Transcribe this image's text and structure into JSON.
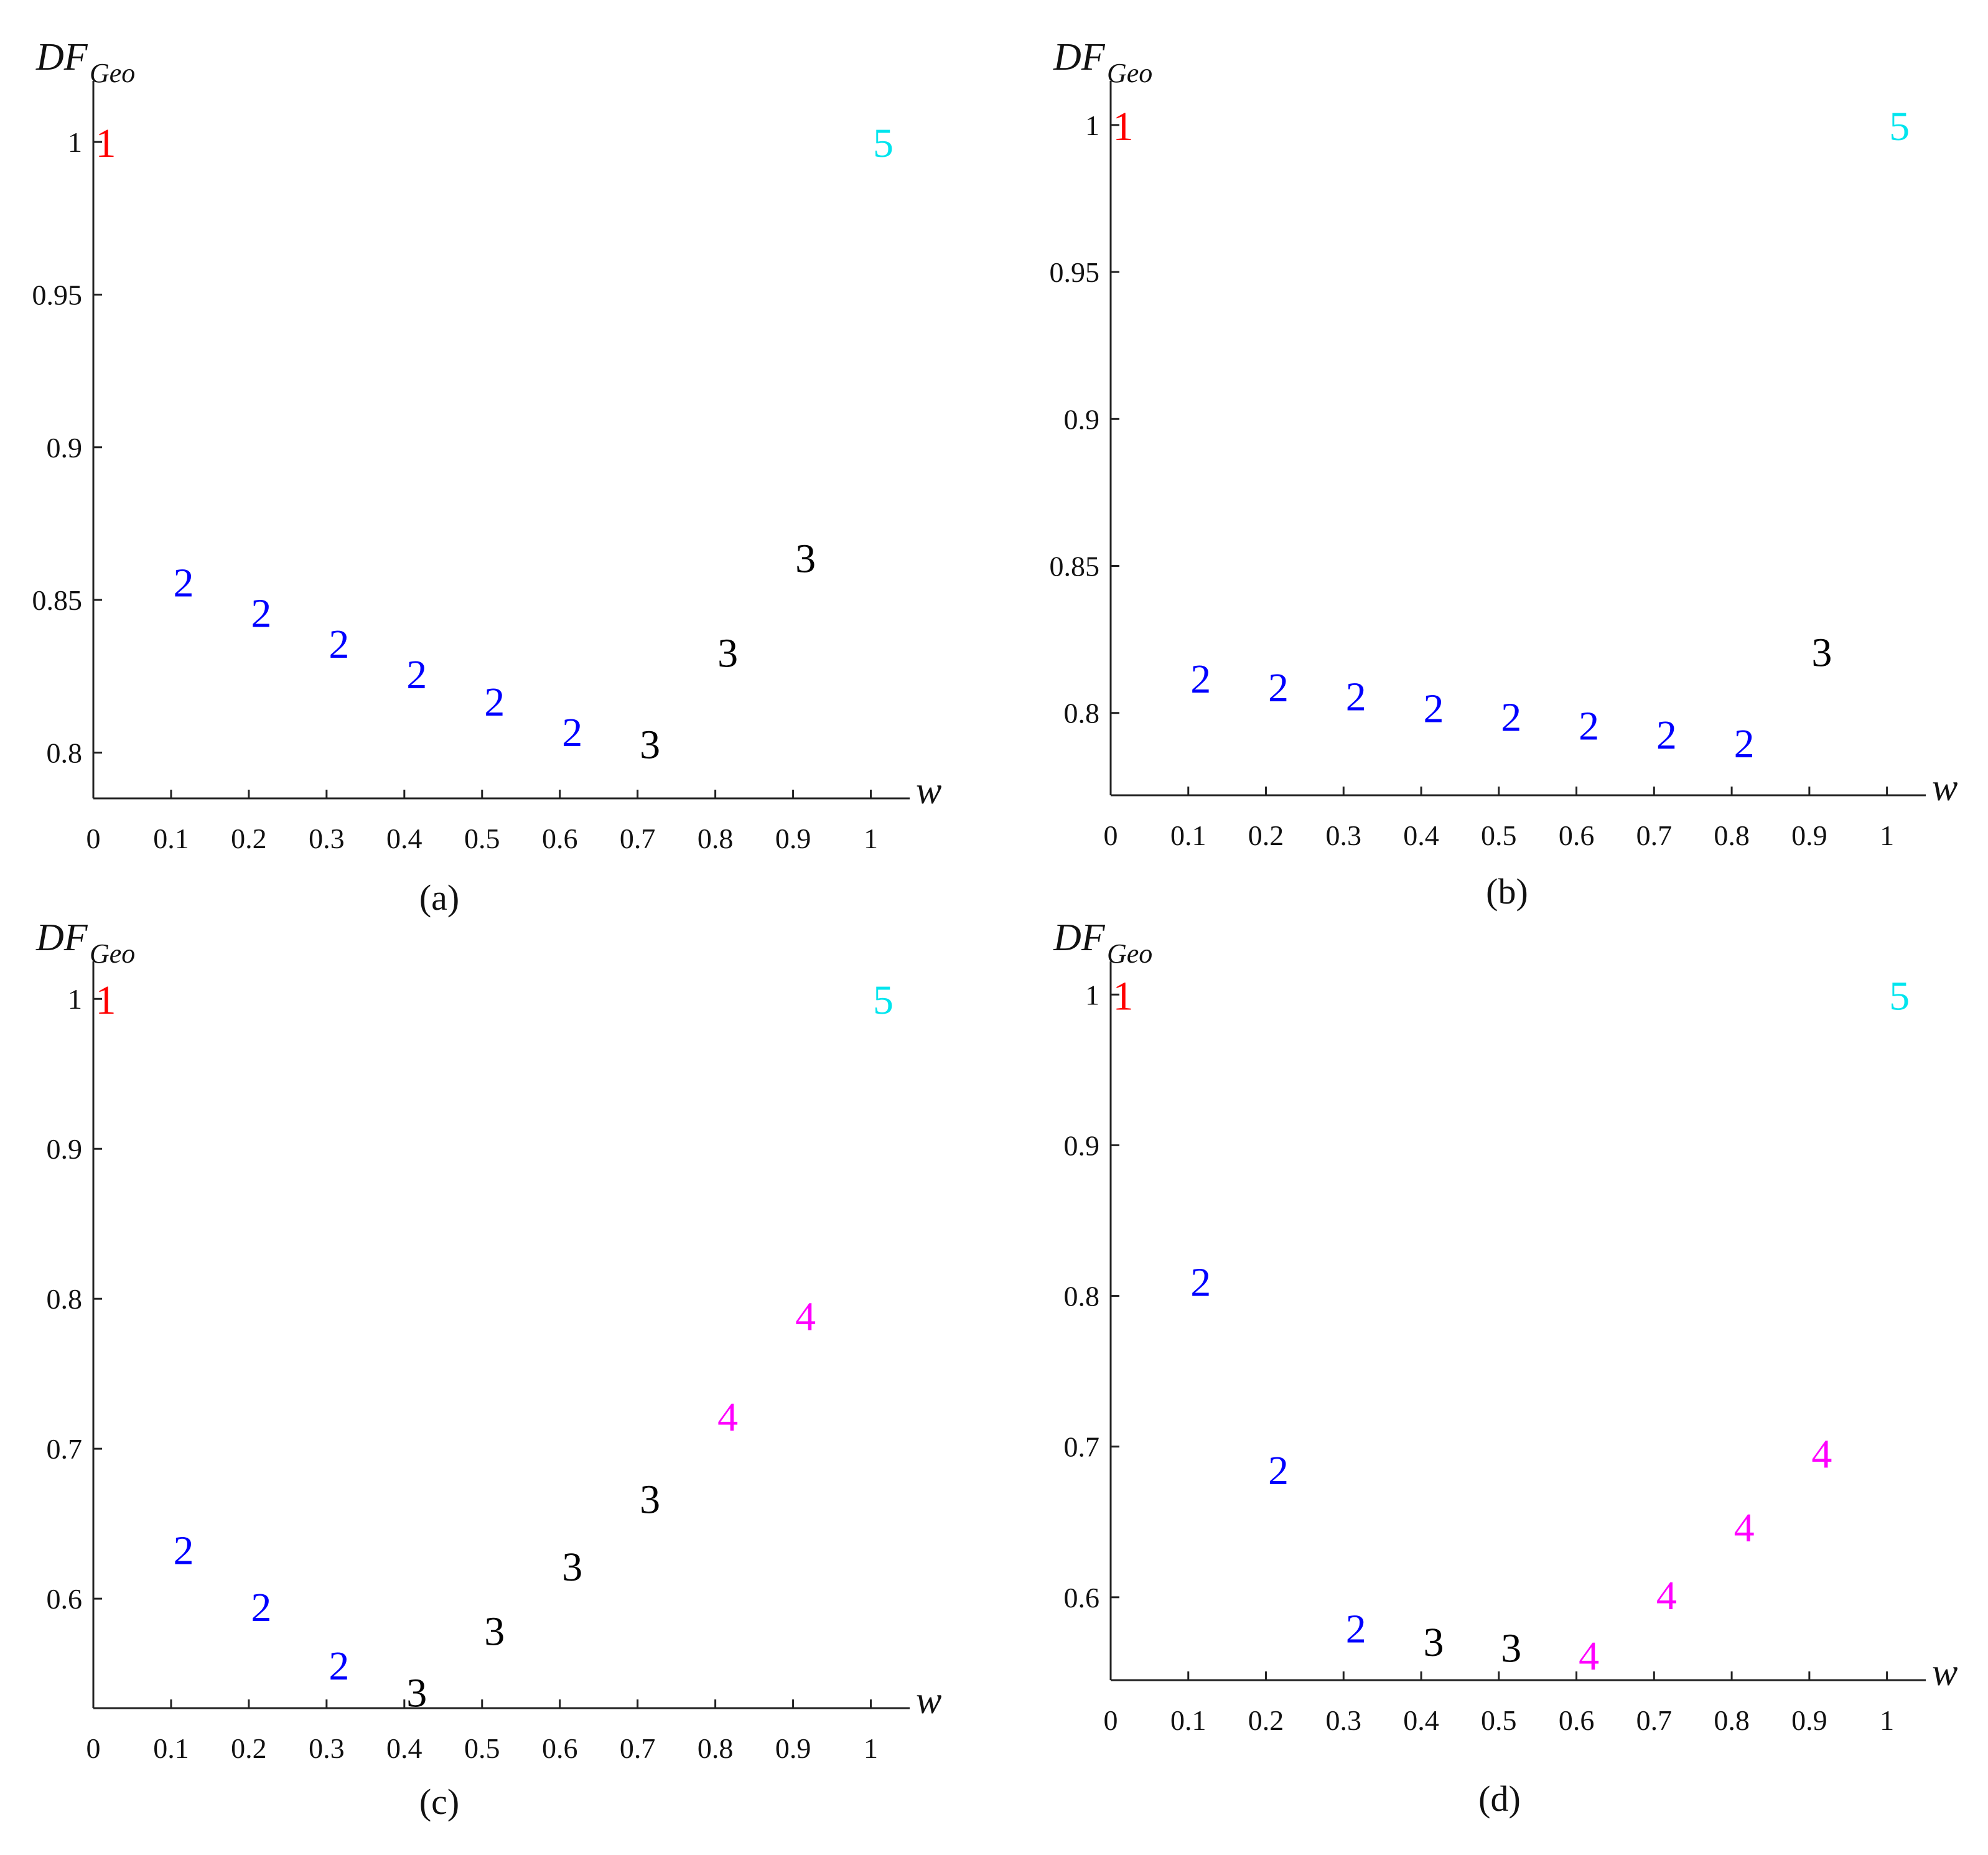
{
  "marker_colors": {
    "1": "#ff0000",
    "2": "#0000ff",
    "3": "#000000",
    "4": "#ff00ff",
    "5": "#00e5ee"
  },
  "chart_data": [
    {
      "type": "scatter",
      "panel": "(a)",
      "ylabel_main": "DF",
      "ylabel_sub": "Geo",
      "xlabel": "w",
      "xlim": [
        0,
        1.05
      ],
      "ylim": [
        0.785,
        1.02
      ],
      "xticks": [
        "0",
        "0.1",
        "0.2",
        "0.3",
        "0.4",
        "0.5",
        "0.6",
        "0.7",
        "0.8",
        "0.9",
        "1"
      ],
      "yticks": [
        {
          "v": 0.8,
          "label": "0.8"
        },
        {
          "v": 0.85,
          "label": "0.85"
        },
        {
          "v": 0.9,
          "label": "0.9"
        },
        {
          "v": 0.95,
          "label": "0.95"
        },
        {
          "v": 1,
          "label": "1"
        }
      ],
      "points": [
        {
          "x": 0,
          "y": 1.0,
          "label": "1"
        },
        {
          "x": 0.1,
          "y": 0.856,
          "label": "2"
        },
        {
          "x": 0.2,
          "y": 0.846,
          "label": "2"
        },
        {
          "x": 0.3,
          "y": 0.836,
          "label": "2"
        },
        {
          "x": 0.4,
          "y": 0.826,
          "label": "2"
        },
        {
          "x": 0.5,
          "y": 0.817,
          "label": "2"
        },
        {
          "x": 0.6,
          "y": 0.807,
          "label": "2"
        },
        {
          "x": 0.7,
          "y": 0.803,
          "label": "3"
        },
        {
          "x": 0.8,
          "y": 0.833,
          "label": "3"
        },
        {
          "x": 0.9,
          "y": 0.864,
          "label": "3"
        },
        {
          "x": 1,
          "y": 1.0,
          "label": "5"
        }
      ]
    },
    {
      "type": "scatter",
      "panel": "(b)",
      "ylabel_main": "DF",
      "ylabel_sub": "Geo",
      "xlabel": "w",
      "xlim": [
        0,
        1.05
      ],
      "ylim": [
        0.772,
        1.015
      ],
      "xticks": [
        "0",
        "0.1",
        "0.2",
        "0.3",
        "0.4",
        "0.5",
        "0.6",
        "0.7",
        "0.8",
        "0.9",
        "1"
      ],
      "yticks": [
        {
          "v": 0.8,
          "label": "0.8"
        },
        {
          "v": 0.85,
          "label": "0.85"
        },
        {
          "v": 0.9,
          "label": "0.9"
        },
        {
          "v": 0.95,
          "label": "0.95"
        },
        {
          "v": 1,
          "label": "1"
        }
      ],
      "points": [
        {
          "x": 0,
          "y": 1.0,
          "label": "1"
        },
        {
          "x": 0.1,
          "y": 0.812,
          "label": "2"
        },
        {
          "x": 0.2,
          "y": 0.809,
          "label": "2"
        },
        {
          "x": 0.3,
          "y": 0.806,
          "label": "2"
        },
        {
          "x": 0.4,
          "y": 0.802,
          "label": "2"
        },
        {
          "x": 0.5,
          "y": 0.799,
          "label": "2"
        },
        {
          "x": 0.6,
          "y": 0.796,
          "label": "2"
        },
        {
          "x": 0.7,
          "y": 0.793,
          "label": "2"
        },
        {
          "x": 0.8,
          "y": 0.79,
          "label": "2"
        },
        {
          "x": 0.9,
          "y": 0.821,
          "label": "3"
        },
        {
          "x": 1,
          "y": 1.0,
          "label": "5"
        }
      ]
    },
    {
      "type": "scatter",
      "panel": "(c)",
      "ylabel_main": "DF",
      "ylabel_sub": "Geo",
      "xlabel": "w",
      "xlim": [
        0,
        1.05
      ],
      "ylim": [
        0.527,
        1.025
      ],
      "xticks": [
        "0",
        "0.1",
        "0.2",
        "0.3",
        "0.4",
        "0.5",
        "0.6",
        "0.7",
        "0.8",
        "0.9",
        "1"
      ],
      "yticks": [
        {
          "v": 0.6,
          "label": "0.6"
        },
        {
          "v": 0.7,
          "label": "0.7"
        },
        {
          "v": 0.8,
          "label": "0.8"
        },
        {
          "v": 0.9,
          "label": "0.9"
        },
        {
          "v": 1,
          "label": "1"
        }
      ],
      "points": [
        {
          "x": 0,
          "y": 1.0,
          "label": "1"
        },
        {
          "x": 0.1,
          "y": 0.633,
          "label": "2"
        },
        {
          "x": 0.2,
          "y": 0.595,
          "label": "2"
        },
        {
          "x": 0.3,
          "y": 0.556,
          "label": "2"
        },
        {
          "x": 0.4,
          "y": 0.538,
          "label": "3"
        },
        {
          "x": 0.5,
          "y": 0.579,
          "label": "3"
        },
        {
          "x": 0.6,
          "y": 0.622,
          "label": "3"
        },
        {
          "x": 0.7,
          "y": 0.667,
          "label": "3"
        },
        {
          "x": 0.8,
          "y": 0.722,
          "label": "4"
        },
        {
          "x": 0.9,
          "y": 0.789,
          "label": "4"
        },
        {
          "x": 1,
          "y": 1.0,
          "label": "5"
        }
      ]
    },
    {
      "type": "scatter",
      "panel": "(d)",
      "ylabel_main": "DF",
      "ylabel_sub": "Geo",
      "xlabel": "w",
      "xlim": [
        0,
        1.05
      ],
      "ylim": [
        0.545,
        1.022
      ],
      "xticks": [
        "0",
        "0.1",
        "0.2",
        "0.3",
        "0.4",
        "0.5",
        "0.6",
        "0.7",
        "0.8",
        "0.9",
        "1"
      ],
      "yticks": [
        {
          "v": 0.6,
          "label": "0.6"
        },
        {
          "v": 0.7,
          "label": "0.7"
        },
        {
          "v": 0.8,
          "label": "0.8"
        },
        {
          "v": 0.9,
          "label": "0.9"
        },
        {
          "v": 1,
          "label": "1"
        }
      ],
      "points": [
        {
          "x": 0,
          "y": 1.0,
          "label": "1"
        },
        {
          "x": 0.1,
          "y": 0.81,
          "label": "2"
        },
        {
          "x": 0.2,
          "y": 0.685,
          "label": "2"
        },
        {
          "x": 0.3,
          "y": 0.58,
          "label": "2"
        },
        {
          "x": 0.4,
          "y": 0.571,
          "label": "3"
        },
        {
          "x": 0.5,
          "y": 0.567,
          "label": "3"
        },
        {
          "x": 0.6,
          "y": 0.562,
          "label": "4"
        },
        {
          "x": 0.7,
          "y": 0.602,
          "label": "4"
        },
        {
          "x": 0.8,
          "y": 0.647,
          "label": "4"
        },
        {
          "x": 0.9,
          "y": 0.696,
          "label": "4"
        },
        {
          "x": 1,
          "y": 1.0,
          "label": "5"
        }
      ]
    }
  ]
}
